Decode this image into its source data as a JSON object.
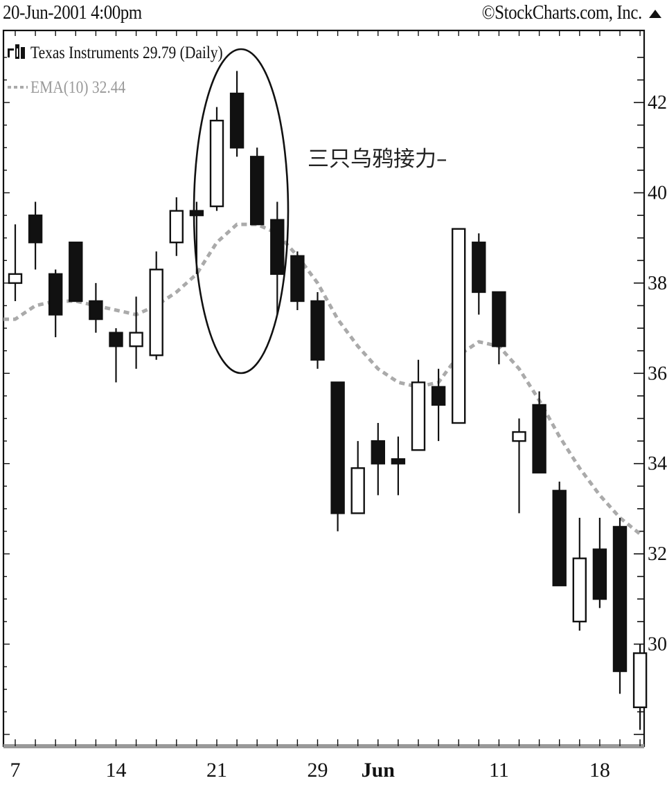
{
  "header": {
    "date": "20-Jun-2001 4:00pm",
    "copyright": "©StockCharts.com, Inc."
  },
  "legend": {
    "symbol": "Texas Instruments 29.79 (Daily)",
    "ema": "EMA(10) 32.44"
  },
  "annotation": "三只乌鸦接力–",
  "colors": {
    "candle_down": "#111111",
    "candle_up": "#ffffff",
    "ema": "#aaaaaa",
    "frame": "#111111"
  },
  "chart_data": {
    "type": "candlestick",
    "title": "Texas Instruments 29.79 (Daily)",
    "y_axis": {
      "side": "right",
      "ticks": [
        30,
        32,
        34,
        36,
        38,
        40,
        42
      ],
      "ylim": [
        28.0,
        43.2
      ]
    },
    "x_axis": {
      "ticks": [
        "7",
        "14",
        "21",
        "29",
        "Jun",
        "11",
        "18"
      ],
      "bold_ticks": [
        "Jun"
      ]
    },
    "series": [
      {
        "name": "Texas Instruments 29.79 (Daily)",
        "ohlc": [
          {
            "o": 38.0,
            "h": 39.3,
            "l": 37.6,
            "c": 38.2
          },
          {
            "o": 39.5,
            "h": 39.8,
            "l": 38.3,
            "c": 38.9
          },
          {
            "o": 38.2,
            "h": 38.3,
            "l": 36.8,
            "c": 37.3
          },
          {
            "o": 38.9,
            "h": 38.9,
            "l": 37.6,
            "c": 37.6
          },
          {
            "o": 37.6,
            "h": 38.0,
            "l": 36.9,
            "c": 37.2
          },
          {
            "o": 36.9,
            "h": 37.0,
            "l": 35.8,
            "c": 36.6
          },
          {
            "o": 36.6,
            "h": 37.7,
            "l": 36.1,
            "c": 36.9
          },
          {
            "o": 36.4,
            "h": 38.7,
            "l": 36.3,
            "c": 38.3
          },
          {
            "o": 38.9,
            "h": 39.9,
            "l": 38.6,
            "c": 39.6
          },
          {
            "o": 39.6,
            "h": 39.8,
            "l": 38.2,
            "c": 39.5
          },
          {
            "o": 39.7,
            "h": 41.9,
            "l": 39.6,
            "c": 41.6
          },
          {
            "o": 42.2,
            "h": 42.7,
            "l": 40.8,
            "c": 41.0
          },
          {
            "o": 40.8,
            "h": 41.0,
            "l": 39.3,
            "c": 39.3
          },
          {
            "o": 39.4,
            "h": 39.8,
            "l": 37.3,
            "c": 38.2
          },
          {
            "o": 38.6,
            "h": 38.7,
            "l": 37.4,
            "c": 37.6
          },
          {
            "o": 37.6,
            "h": 37.8,
            "l": 36.1,
            "c": 36.3
          },
          {
            "o": 35.8,
            "h": 35.8,
            "l": 32.5,
            "c": 32.9
          },
          {
            "o": 32.9,
            "h": 34.5,
            "l": 32.9,
            "c": 33.9
          },
          {
            "o": 34.5,
            "h": 34.9,
            "l": 33.3,
            "c": 34.0
          },
          {
            "o": 34.1,
            "h": 34.6,
            "l": 33.3,
            "c": 34.0
          },
          {
            "o": 34.3,
            "h": 36.3,
            "l": 34.3,
            "c": 35.8
          },
          {
            "o": 35.7,
            "h": 36.1,
            "l": 34.5,
            "c": 35.3
          },
          {
            "o": 34.9,
            "h": 39.2,
            "l": 34.9,
            "c": 39.2
          },
          {
            "o": 38.9,
            "h": 39.1,
            "l": 37.3,
            "c": 37.8
          },
          {
            "o": 37.8,
            "h": 37.8,
            "l": 36.2,
            "c": 36.6
          },
          {
            "o": 34.5,
            "h": 35.0,
            "l": 32.9,
            "c": 34.7
          },
          {
            "o": 35.3,
            "h": 35.6,
            "l": 33.8,
            "c": 33.8
          },
          {
            "o": 33.4,
            "h": 33.6,
            "l": 31.3,
            "c": 31.3
          },
          {
            "o": 30.5,
            "h": 32.8,
            "l": 30.3,
            "c": 31.9
          },
          {
            "o": 32.1,
            "h": 32.8,
            "l": 30.8,
            "c": 31.0
          },
          {
            "o": 32.6,
            "h": 32.8,
            "l": 28.9,
            "c": 29.4
          },
          {
            "o": 28.6,
            "h": 30.0,
            "l": 28.1,
            "c": 29.8
          }
        ]
      },
      {
        "name": "EMA(10) 32.44",
        "values": [
          37.2,
          37.5,
          37.6,
          37.6,
          37.5,
          37.4,
          37.3,
          37.5,
          37.8,
          38.2,
          38.9,
          39.3,
          39.3,
          39.1,
          38.6,
          38.0,
          37.2,
          36.6,
          36.1,
          35.8,
          35.7,
          35.8,
          36.4,
          36.7,
          36.6,
          36.1,
          35.4,
          34.6,
          33.9,
          33.3,
          32.8,
          32.44
        ]
      }
    ],
    "annotations": [
      {
        "text": "三只乌鸦接力–",
        "shape": "ellipse",
        "spans_candles": [
          10,
          13
        ]
      }
    ],
    "grid": false
  }
}
